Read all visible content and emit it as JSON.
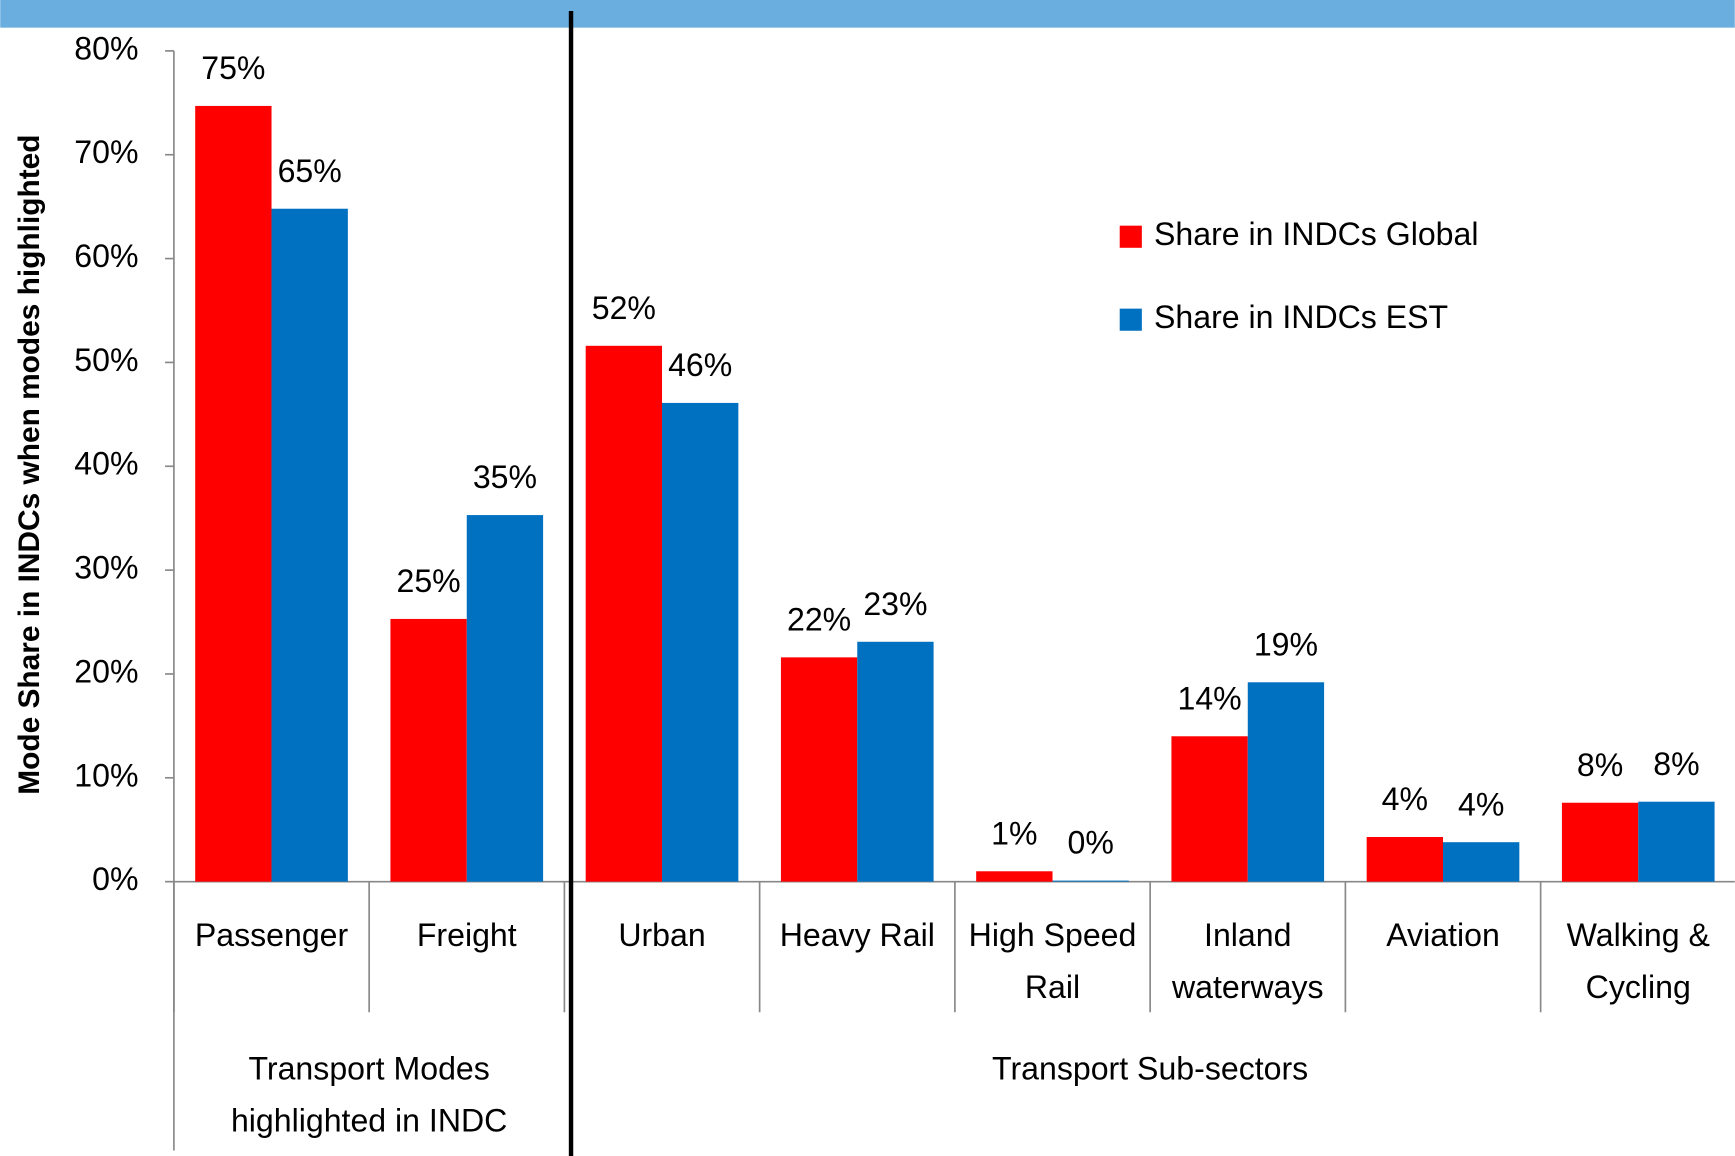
{
  "chart_data": {
    "type": "bar",
    "y_axis_label": "Mode Share in INDCs when modes highlighted",
    "categories": [
      "Passenger",
      "Freight",
      "Urban",
      "Heavy Rail",
      "High Speed Rail",
      "Inland waterways",
      "Aviation",
      "Walking & Cycling"
    ],
    "groups": [
      {
        "label": "Transport Modes highlighted in INDC",
        "size": 2
      },
      {
        "label": "Transport Sub-sectors",
        "size": 6
      }
    ],
    "series": [
      {
        "name": "Share in INDCs Global",
        "color": "#ff0000",
        "values": [
          74.7,
          25.3,
          51.6,
          21.6,
          1.0,
          14.0,
          4.3,
          7.6
        ],
        "value_labels": [
          "75%",
          "25%",
          "52%",
          "22%",
          "1%",
          "14%",
          "4%",
          "8%"
        ]
      },
      {
        "name": "Share in INDCs EST",
        "color": "#0070c0",
        "values": [
          64.8,
          35.3,
          46.1,
          23.1,
          0.1,
          19.2,
          3.8,
          7.7
        ],
        "value_labels": [
          "65%",
          "35%",
          "46%",
          "23%",
          "0%",
          "19%",
          "4%",
          "8%"
        ]
      }
    ],
    "ylim": [
      0,
      80
    ],
    "yticks": [
      {
        "value": 0,
        "label": "0%"
      },
      {
        "value": 10,
        "label": "10%"
      },
      {
        "value": 20,
        "label": "20%"
      },
      {
        "value": 30,
        "label": "30%"
      },
      {
        "value": 40,
        "label": "40%"
      },
      {
        "value": 50,
        "label": "50%"
      },
      {
        "value": 60,
        "label": "60%"
      },
      {
        "value": 70,
        "label": "70%"
      },
      {
        "value": 80,
        "label": "80%"
      }
    ],
    "legend": "upper right"
  }
}
